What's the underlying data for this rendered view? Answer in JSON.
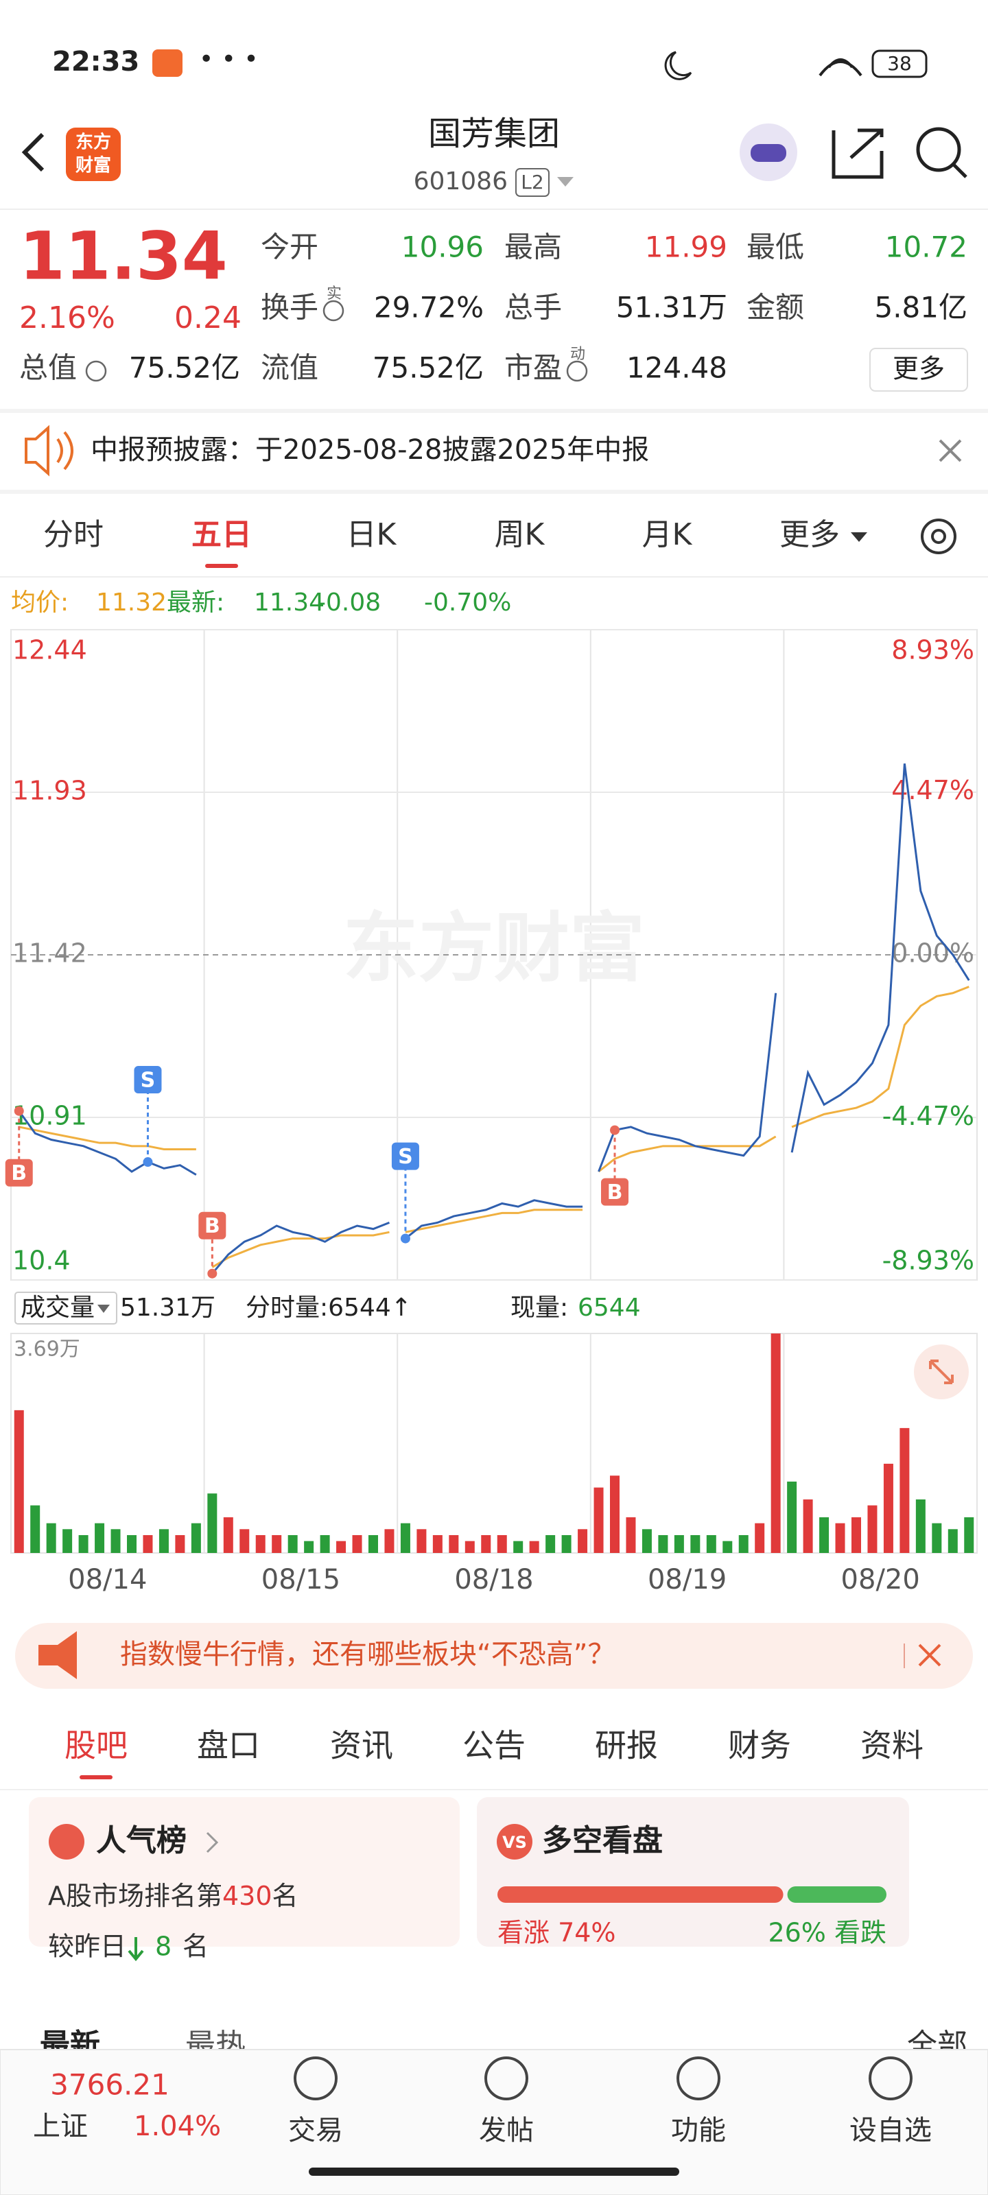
{
  "status_bar": {
    "time": "22:33",
    "battery": "38"
  },
  "header": {
    "logo": [
      "东方",
      "财富"
    ],
    "title": "国芳集团",
    "code": "601086",
    "level": "L2"
  },
  "quote": {
    "price": "11.34",
    "change_pct": "2.16%",
    "change": "0.24",
    "fields": [
      {
        "label": "今开",
        "value": "10.96",
        "color": "#2a9d3a"
      },
      {
        "label": "最高",
        "value": "11.99",
        "color": "#e03a3a"
      },
      {
        "label": "最低",
        "value": "10.72",
        "color": "#2a9d3a"
      },
      {
        "label": "换手",
        "sup": "实",
        "value": "29.72%",
        "color": "#222"
      },
      {
        "label": "总手",
        "value": "51.31万",
        "color": "#222"
      },
      {
        "label": "金额",
        "value": "5.81亿",
        "color": "#222"
      },
      {
        "label": "总值",
        "value": "75.52亿",
        "color": "#222"
      },
      {
        "label": "流值",
        "value": "75.52亿",
        "color": "#222"
      },
      {
        "label": "市盈",
        "sup": "动",
        "value": "124.48",
        "color": "#222"
      }
    ],
    "more": "更多"
  },
  "notice": "中报预披露：于2025-08-28披露2025年中报",
  "tabs": {
    "items": [
      "分时",
      "五日",
      "日K",
      "周K",
      "月K",
      "更多"
    ],
    "active": 1
  },
  "info": {
    "avg_label": "均价:",
    "avg": "11.32",
    "last_label": "最新:",
    "last": "11.34",
    "change": "-0.08",
    "change_pct": "-0.70%"
  },
  "chart_data": [
    {
      "type": "line",
      "watermark": "东方财富",
      "ylim": [
        10.4,
        12.44
      ],
      "yticks": [
        12.44,
        11.93,
        11.42,
        10.91,
        10.4
      ],
      "y2lim": [
        -8.93,
        8.93
      ],
      "y2ticks": [
        {
          "value": 8.93,
          "label": "8.93%"
        },
        {
          "value": 4.47,
          "label": "4.47%"
        },
        {
          "value": 0,
          "label": "0.00%"
        },
        {
          "value": -4.47,
          "label": "-4.47%"
        },
        {
          "value": -8.93,
          "label": "-8.93%"
        }
      ],
      "series": [
        {
          "name": "最新",
          "color": "#2f5fae",
          "values": [
            10.93,
            10.86,
            10.84,
            10.83,
            10.82,
            10.8,
            10.78,
            10.74,
            10.77,
            10.75,
            10.76,
            10.73,
            10.42,
            10.48,
            10.52,
            10.54,
            10.57,
            10.55,
            10.54,
            10.52,
            10.55,
            10.57,
            10.56,
            10.58,
            10.53,
            10.57,
            10.58,
            10.6,
            10.61,
            10.62,
            10.64,
            10.63,
            10.65,
            10.64,
            10.63,
            10.63,
            10.74,
            10.87,
            10.88,
            10.86,
            10.85,
            10.84,
            10.82,
            10.81,
            10.8,
            10.79,
            10.85,
            11.3,
            10.8,
            11.05,
            10.95,
            10.98,
            11.02,
            11.08,
            11.2,
            12.02,
            11.62,
            11.48,
            11.42,
            11.34
          ]
        },
        {
          "name": "均价",
          "color": "#f0b040",
          "values": [
            10.88,
            10.87,
            10.86,
            10.85,
            10.84,
            10.83,
            10.83,
            10.82,
            10.82,
            10.81,
            10.81,
            10.81,
            10.44,
            10.47,
            10.49,
            10.51,
            10.52,
            10.53,
            10.53,
            10.53,
            10.54,
            10.54,
            10.54,
            10.55,
            10.55,
            10.56,
            10.57,
            10.58,
            10.59,
            10.6,
            10.61,
            10.61,
            10.62,
            10.62,
            10.62,
            10.62,
            10.74,
            10.78,
            10.8,
            10.81,
            10.82,
            10.82,
            10.82,
            10.82,
            10.82,
            10.82,
            10.82,
            10.85,
            10.88,
            10.9,
            10.92,
            10.93,
            10.94,
            10.96,
            11.0,
            11.2,
            11.26,
            11.29,
            11.3,
            11.32
          ]
        }
      ],
      "markers": [
        {
          "at": 0,
          "label": "B"
        },
        {
          "at": 8,
          "label": "S"
        },
        {
          "at": 12,
          "label": "B"
        },
        {
          "at": 24,
          "label": "S"
        },
        {
          "at": 37,
          "label": "B"
        }
      ]
    },
    {
      "type": "bar",
      "title": "成交量",
      "total": "51.31万",
      "tick_vol": "分时量:6544↑",
      "now_label": "现量:",
      "now": "6544",
      "max_label": "3.69万",
      "ylim": [
        0,
        3.69
      ],
      "values": [
        2.4,
        0.8,
        0.5,
        0.4,
        0.3,
        0.5,
        0.4,
        0.3,
        0.3,
        0.4,
        0.3,
        0.5,
        1.0,
        0.6,
        0.4,
        0.3,
        0.3,
        0.3,
        0.2,
        0.3,
        0.2,
        0.3,
        0.3,
        0.4,
        0.5,
        0.4,
        0.3,
        0.3,
        0.2,
        0.3,
        0.3,
        0.2,
        0.2,
        0.3,
        0.3,
        0.4,
        1.1,
        1.3,
        0.6,
        0.4,
        0.3,
        0.3,
        0.3,
        0.3,
        0.2,
        0.3,
        0.5,
        3.69,
        1.2,
        0.9,
        0.6,
        0.5,
        0.6,
        0.8,
        1.5,
        2.1,
        0.9,
        0.5,
        0.4,
        0.6
      ],
      "date_labels": [
        "08/14",
        "08/15",
        "08/18",
        "08/19",
        "08/20"
      ]
    }
  ],
  "ad": "指数慢牛行情，还有哪些板块“不恐高”？",
  "sub_tabs": {
    "items": [
      "股吧",
      "盘口",
      "资讯",
      "公告",
      "研报",
      "财务",
      "资料"
    ],
    "active": 0
  },
  "cards": {
    "rank": {
      "title": "人气榜",
      "line1": [
        "A股市场排名第",
        "430",
        "名"
      ],
      "line2": [
        "较昨日",
        "8",
        "名"
      ]
    },
    "sentiment": {
      "title": "多空看盘",
      "bull": {
        "value": 74,
        "label": "看涨 74%"
      },
      "bear": {
        "value": 26,
        "label": "26% 看跌"
      }
    }
  },
  "list_header": {
    "latest": "最新",
    "hot": "最热",
    "all": "全部"
  },
  "bottom_nav": {
    "index_value": "3766.21",
    "index_name": "上证",
    "index_change": "1.04%",
    "items": [
      "交易",
      "发帖",
      "功能",
      "设自选"
    ]
  }
}
